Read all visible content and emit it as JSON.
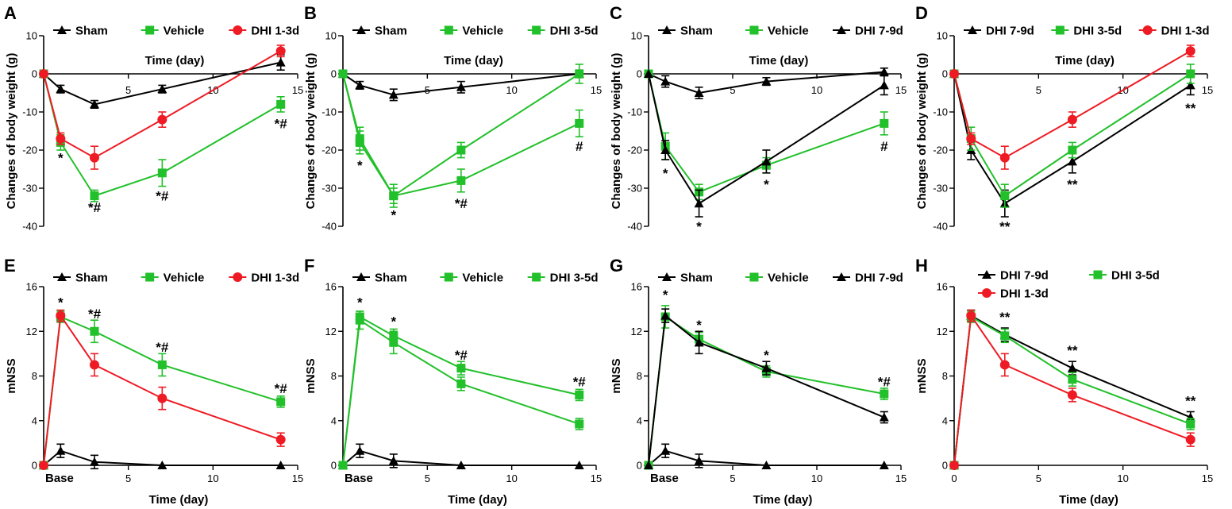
{
  "figure_title": "",
  "colors": {
    "Sham": "#000000",
    "Vehicle": "#22c02a",
    "DHI 1-3d": "#ee1b24",
    "DHI 3-5d": "#22c02a",
    "DHI 7-9d": "#000000"
  },
  "chart_data": [
    {
      "id": "A",
      "label": "A",
      "type": "line",
      "xlabel": "Time (day)",
      "ylabel": "Changes of body weight (g)",
      "xlim": [
        0,
        15
      ],
      "ylim": [
        -40,
        10
      ],
      "xticks": [
        "5",
        "10",
        "15"
      ],
      "yticks": [
        "10",
        "0",
        "-10",
        "-20",
        "-30",
        "-40"
      ],
      "legend": [
        "Sham",
        "Vehicle",
        "DHI 1-3d"
      ],
      "series": [
        {
          "name": "Sham",
          "x": [
            0,
            1,
            3,
            7,
            14
          ],
          "values": [
            0,
            -4,
            -8,
            -4,
            3
          ],
          "err": [
            0,
            1,
            1,
            1,
            2
          ]
        },
        {
          "name": "Vehicle",
          "x": [
            0,
            1,
            3,
            7,
            14
          ],
          "values": [
            0,
            -18,
            -32,
            -26,
            -8
          ],
          "err": [
            0,
            2,
            1.5,
            3.5,
            2
          ]
        },
        {
          "name": "DHI 1-3d",
          "x": [
            0,
            1,
            3,
            7,
            14
          ],
          "values": [
            0,
            -17,
            -22,
            -12,
            6
          ],
          "err": [
            0,
            1.5,
            3,
            2,
            1.5
          ]
        }
      ],
      "annotations": [
        {
          "x": 1,
          "y": -22,
          "text": "*"
        },
        {
          "x": 3,
          "y": -35,
          "text": "*#"
        },
        {
          "x": 7,
          "y": -32,
          "text": "*#"
        },
        {
          "x": 14,
          "y": -13,
          "text": "*#"
        }
      ]
    },
    {
      "id": "B",
      "label": "B",
      "type": "line",
      "xlabel": "Time (day)",
      "ylabel": "Changes of body weight (g)",
      "xlim": [
        0,
        15
      ],
      "ylim": [
        -40,
        10
      ],
      "xticks": [
        "5",
        "10",
        "15"
      ],
      "yticks": [
        "10",
        "0",
        "-10",
        "-20",
        "-30",
        "-40"
      ],
      "legend": [
        "Sham",
        "Vehicle",
        "DHI 3-5d"
      ],
      "series": [
        {
          "name": "Sham",
          "x": [
            0,
            1,
            3,
            7,
            14
          ],
          "values": [
            0,
            -3,
            -5.5,
            -3.5,
            0
          ],
          "err": [
            0,
            1,
            1.5,
            1.5,
            1
          ]
        },
        {
          "name": "Vehicle",
          "x": [
            0,
            1,
            3,
            7,
            14
          ],
          "values": [
            0,
            -18,
            -32,
            -28,
            -13
          ],
          "err": [
            0,
            3,
            2,
            3,
            3.5
          ]
        },
        {
          "name": "DHI 3-5d",
          "x": [
            0,
            1,
            3,
            7,
            14
          ],
          "values": [
            0,
            -17,
            -32,
            -20,
            0
          ],
          "err": [
            0,
            3,
            3,
            2,
            2.5
          ]
        }
      ],
      "annotations": [
        {
          "x": 1,
          "y": -24,
          "text": "*"
        },
        {
          "x": 3,
          "y": -37,
          "text": "*"
        },
        {
          "x": 7,
          "y": -34,
          "text": "*#"
        },
        {
          "x": 14,
          "y": -19,
          "text": "#"
        }
      ]
    },
    {
      "id": "C",
      "label": "C",
      "type": "line",
      "xlabel": "Time (day)",
      "ylabel": "Changes of body weight (g)",
      "xlim": [
        0,
        15
      ],
      "ylim": [
        -40,
        10
      ],
      "xticks": [
        "5",
        "10",
        "15"
      ],
      "yticks": [
        "10",
        "0",
        "-10",
        "-20",
        "-30",
        "-40"
      ],
      "legend": [
        "Sham",
        "Vehicle",
        "DHI 7-9d"
      ],
      "series": [
        {
          "name": "Sham",
          "x": [
            0,
            1,
            3,
            7,
            14
          ],
          "values": [
            0,
            -2,
            -5,
            -2,
            0.5
          ],
          "err": [
            0,
            1.5,
            1.5,
            1,
            1
          ]
        },
        {
          "name": "Vehicle",
          "x": [
            0,
            1,
            3,
            7,
            14
          ],
          "values": [
            0,
            -19,
            -31,
            -24,
            -13
          ],
          "err": [
            0,
            3.5,
            2,
            2,
            3
          ]
        },
        {
          "name": "DHI 7-9d",
          "x": [
            0,
            1,
            3,
            7,
            14
          ],
          "values": [
            0,
            -20,
            -34,
            -23,
            -3
          ],
          "err": [
            0,
            2.5,
            3.5,
            3,
            2.5
          ]
        }
      ],
      "annotations": [
        {
          "x": 1,
          "y": -26,
          "text": "*"
        },
        {
          "x": 3,
          "y": -40,
          "text": "*"
        },
        {
          "x": 7,
          "y": -29,
          "text": "*"
        },
        {
          "x": 14,
          "y": -19,
          "text": "#"
        }
      ]
    },
    {
      "id": "D",
      "label": "D",
      "type": "line",
      "xlabel": "Time (day)",
      "ylabel": "Changes of body weight (g)",
      "xlim": [
        0,
        15
      ],
      "ylim": [
        -40,
        10
      ],
      "xticks": [
        "5",
        "10",
        "15"
      ],
      "yticks": [
        "10",
        "0",
        "-10",
        "-20",
        "-30",
        "-40"
      ],
      "legend": [
        "DHI 7-9d",
        "DHI 3-5d",
        "DHI 1-3d"
      ],
      "series": [
        {
          "name": "DHI 7-9d",
          "x": [
            0,
            1,
            3,
            7,
            14
          ],
          "values": [
            0,
            -20,
            -34,
            -23,
            -3
          ],
          "err": [
            0,
            2.5,
            3.5,
            3,
            2.5
          ]
        },
        {
          "name": "DHI 3-5d",
          "x": [
            0,
            1,
            3,
            7,
            14
          ],
          "values": [
            0,
            -17,
            -32,
            -20,
            0
          ],
          "err": [
            0,
            3,
            3,
            2,
            2.5
          ]
        },
        {
          "name": "DHI 1-3d",
          "x": [
            0,
            1,
            3,
            7,
            14
          ],
          "values": [
            0,
            -17,
            -22,
            -12,
            6
          ],
          "err": [
            0,
            1.5,
            3,
            2,
            1.5
          ]
        }
      ],
      "annotations": [
        {
          "x": 3,
          "y": -40,
          "text": "**"
        },
        {
          "x": 7,
          "y": -29,
          "text": "**"
        },
        {
          "x": 14,
          "y": -9,
          "text": "**"
        }
      ]
    },
    {
      "id": "E",
      "label": "E",
      "type": "line",
      "xlabel": "Time (day)",
      "ylabel": "mNSS",
      "xlim": [
        0,
        15
      ],
      "ylim": [
        0,
        16
      ],
      "xticks": [
        "5",
        "10",
        "15"
      ],
      "yticks": [
        "0",
        "4",
        "8",
        "12",
        "16"
      ],
      "base_label": "Base",
      "legend": [
        "Sham",
        "Vehicle",
        "DHI 1-3d"
      ],
      "series": [
        {
          "name": "Sham",
          "x": [
            0,
            1,
            3,
            7,
            14
          ],
          "values": [
            0,
            1.3,
            0.3,
            0,
            0
          ],
          "err": [
            0,
            0.6,
            0.6,
            0,
            0
          ]
        },
        {
          "name": "Vehicle",
          "x": [
            0,
            1,
            3,
            7,
            14
          ],
          "values": [
            0,
            13.3,
            12,
            9,
            5.7
          ],
          "err": [
            0,
            0.5,
            1,
            1,
            0.5
          ]
        },
        {
          "name": "DHI 1-3d",
          "x": [
            0,
            1,
            3,
            7,
            14
          ],
          "values": [
            0,
            13.4,
            9,
            6,
            2.3
          ],
          "err": [
            0,
            0.5,
            1,
            1,
            0.6
          ]
        }
      ],
      "annotations": [
        {
          "x": 1,
          "y": 14.6,
          "text": "*"
        },
        {
          "x": 3,
          "y": 13.6,
          "text": "*#"
        },
        {
          "x": 7,
          "y": 10.6,
          "text": "*#"
        },
        {
          "x": 14,
          "y": 6.9,
          "text": "*#"
        }
      ]
    },
    {
      "id": "F",
      "label": "F",
      "type": "line",
      "xlabel": "Time (day)",
      "ylabel": "mNSS",
      "xlim": [
        0,
        15
      ],
      "ylim": [
        0,
        16
      ],
      "xticks": [
        "5",
        "10",
        "15"
      ],
      "yticks": [
        "0",
        "4",
        "8",
        "12",
        "16"
      ],
      "base_label": "Base",
      "legend": [
        "Sham",
        "Vehicle",
        "DHI 3-5d"
      ],
      "series": [
        {
          "name": "Sham",
          "x": [
            0,
            1,
            3,
            7,
            14
          ],
          "values": [
            0,
            1.3,
            0.4,
            0,
            0
          ],
          "err": [
            0,
            0.6,
            0.6,
            0,
            0
          ]
        },
        {
          "name": "Vehicle",
          "x": [
            0,
            1,
            3,
            7,
            14
          ],
          "values": [
            0,
            13.3,
            11.6,
            8.7,
            6.3
          ],
          "err": [
            0,
            0.5,
            0.6,
            0.6,
            0.5
          ]
        },
        {
          "name": "DHI 3-5d",
          "x": [
            0,
            1,
            3,
            7,
            14
          ],
          "values": [
            0,
            13,
            11,
            7.3,
            3.7
          ],
          "err": [
            0,
            0.8,
            1,
            0.6,
            0.5
          ]
        }
      ],
      "annotations": [
        {
          "x": 1,
          "y": 14.6,
          "text": "*"
        },
        {
          "x": 3,
          "y": 12.9,
          "text": "*"
        },
        {
          "x": 7,
          "y": 9.9,
          "text": "*#"
        },
        {
          "x": 14,
          "y": 7.5,
          "text": "*#"
        }
      ]
    },
    {
      "id": "G",
      "label": "G",
      "type": "line",
      "xlabel": "Time (day)",
      "ylabel": "mNSS",
      "xlim": [
        0,
        15
      ],
      "ylim": [
        0,
        16
      ],
      "xticks": [
        "5",
        "10",
        "15"
      ],
      "yticks": [
        "0",
        "4",
        "8",
        "12",
        "16"
      ],
      "base_label": "Base",
      "legend": [
        "Sham",
        "Vehicle",
        "DHI 7-9d"
      ],
      "series": [
        {
          "name": "Sham",
          "x": [
            0,
            1,
            3,
            7,
            14
          ],
          "values": [
            0,
            1.3,
            0.4,
            0,
            0
          ],
          "err": [
            0,
            0.6,
            0.6,
            0,
            0
          ]
        },
        {
          "name": "Vehicle",
          "x": [
            0,
            1,
            3,
            7,
            14
          ],
          "values": [
            0,
            13.3,
            11.3,
            8.4,
            6.4
          ],
          "err": [
            0,
            1,
            0.6,
            0.5,
            0.5
          ]
        },
        {
          "name": "DHI 7-9d",
          "x": [
            0,
            1,
            3,
            7,
            14
          ],
          "values": [
            0,
            13.4,
            11,
            8.7,
            4.3
          ],
          "err": [
            0,
            0.6,
            1,
            0.6,
            0.5
          ]
        }
      ],
      "annotations": [
        {
          "x": 1,
          "y": 15.3,
          "text": "*"
        },
        {
          "x": 3,
          "y": 12.6,
          "text": "*"
        },
        {
          "x": 7,
          "y": 9.9,
          "text": "*"
        },
        {
          "x": 14,
          "y": 7.5,
          "text": "*#"
        }
      ]
    },
    {
      "id": "H",
      "label": "H",
      "type": "line",
      "xlabel": "Time (day)",
      "ylabel": "mNSS",
      "xlim": [
        0,
        15
      ],
      "ylim": [
        0,
        16
      ],
      "xticks": [
        "0",
        "5",
        "10",
        "15"
      ],
      "yticks": [
        "0",
        "4",
        "8",
        "12",
        "16"
      ],
      "legend": [
        "DHI 7-9d",
        "DHI 3-5d",
        "DHI 1-3d"
      ],
      "series": [
        {
          "name": "DHI 7-9d",
          "x": [
            0,
            1,
            3,
            7,
            14
          ],
          "values": [
            0,
            13.4,
            11.7,
            8.7,
            4.3
          ],
          "err": [
            0,
            0.5,
            0.6,
            0.6,
            0.5
          ]
        },
        {
          "name": "DHI 3-5d",
          "x": [
            0,
            1,
            3,
            7,
            14
          ],
          "values": [
            0,
            13.3,
            11.6,
            7.7,
            3.7
          ],
          "err": [
            0,
            0.5,
            0.6,
            0.6,
            0.5
          ]
        },
        {
          "name": "DHI 1-3d",
          "x": [
            0,
            1,
            3,
            7,
            14
          ],
          "values": [
            0,
            13.4,
            9,
            6.3,
            2.3
          ],
          "err": [
            0,
            0.5,
            1,
            0.6,
            0.6
          ]
        }
      ],
      "annotations": [
        {
          "x": 3,
          "y": 13.3,
          "text": "**"
        },
        {
          "x": 7,
          "y": 10.3,
          "text": "**"
        },
        {
          "x": 14,
          "y": 5.8,
          "text": "**"
        }
      ]
    }
  ]
}
